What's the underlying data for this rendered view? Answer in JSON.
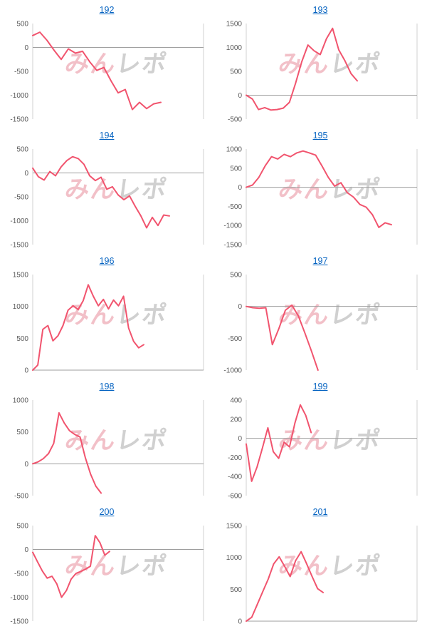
{
  "watermark": {
    "part1": "みん",
    "part2": "レポ"
  },
  "colors": {
    "line": "#f1546e",
    "title_link": "#0563c1",
    "tick": "#595959",
    "axis": "#d0d0d0",
    "zero": "#9e9e9e",
    "watermark_pink": "#f0b6bf",
    "watermark_gray": "#c8c8c8"
  },
  "chart_data": [
    {
      "type": "line",
      "title": "192",
      "ylim": [
        -1500,
        500
      ],
      "yticks": [
        500,
        0,
        -500,
        -1000,
        -1500
      ],
      "span": 0.75,
      "values": [
        250,
        320,
        150,
        -60,
        -250,
        -30,
        -120,
        -80,
        -300,
        -480,
        -420,
        -700,
        -950,
        -880,
        -1300,
        -1150,
        -1280,
        -1180,
        -1150
      ]
    },
    {
      "type": "line",
      "title": "193",
      "ylim": [
        -500,
        1500
      ],
      "yticks": [
        1500,
        1000,
        500,
        0,
        -500
      ],
      "span": 0.65,
      "values": [
        0,
        -80,
        -300,
        -260,
        -310,
        -300,
        -270,
        -150,
        250,
        700,
        1050,
        930,
        850,
        1180,
        1400,
        950,
        720,
        450,
        300
      ]
    },
    {
      "type": "line",
      "title": "194",
      "ylim": [
        -1500,
        500
      ],
      "yticks": [
        500,
        0,
        -500,
        -1000,
        -1500
      ],
      "span": 0.8,
      "values": [
        100,
        -80,
        -150,
        30,
        -60,
        130,
        260,
        340,
        300,
        180,
        -60,
        -160,
        -90,
        -340,
        -290,
        -460,
        -560,
        -480,
        -700,
        -900,
        -1150,
        -930,
        -1100,
        -880,
        -900
      ]
    },
    {
      "type": "line",
      "title": "195",
      "ylim": [
        -1500,
        1000
      ],
      "yticks": [
        1000,
        500,
        0,
        -500,
        -1000,
        -1500
      ],
      "span": 0.85,
      "values": [
        0,
        60,
        260,
        560,
        800,
        740,
        860,
        800,
        900,
        950,
        900,
        840,
        560,
        260,
        30,
        120,
        -140,
        -260,
        -450,
        -520,
        -720,
        -1050,
        -930,
        -980
      ]
    },
    {
      "type": "line",
      "title": "196",
      "ylim": [
        0,
        1500
      ],
      "yticks": [
        1500,
        1000,
        500,
        0
      ],
      "span": 0.65,
      "values": [
        0,
        80,
        640,
        700,
        460,
        540,
        700,
        940,
        1010,
        950,
        1090,
        1340,
        1160,
        1010,
        1110,
        960,
        1100,
        1010,
        1160,
        660,
        450,
        350,
        400
      ]
    },
    {
      "type": "line",
      "title": "197",
      "ylim": [
        -1000,
        500
      ],
      "yticks": [
        500,
        0,
        -500,
        -1000
      ],
      "span": 0.42,
      "values": [
        0,
        -20,
        -30,
        -20,
        -600,
        -350,
        -60,
        20,
        -150,
        -420,
        -700,
        -1000
      ]
    },
    {
      "type": "line",
      "title": "198",
      "ylim": [
        -500,
        1000
      ],
      "yticks": [
        1000,
        500,
        0,
        -500
      ],
      "span": 0.4,
      "values": [
        0,
        30,
        80,
        160,
        320,
        800,
        640,
        520,
        460,
        420,
        100,
        -160,
        -350,
        -460
      ]
    },
    {
      "type": "line",
      "title": "199",
      "ylim": [
        -600,
        400
      ],
      "yticks": [
        400,
        200,
        0,
        -200,
        -400,
        -600
      ],
      "span": 0.38,
      "values": [
        -60,
        -450,
        -300,
        -100,
        110,
        -140,
        -210,
        -40,
        -90,
        160,
        350,
        240,
        60
      ]
    },
    {
      "type": "line",
      "title": "200",
      "ylim": [
        -1500,
        500
      ],
      "yticks": [
        500,
        0,
        -500,
        -1000,
        -1500
      ],
      "span": 0.45,
      "values": [
        -60,
        -260,
        -450,
        -600,
        -560,
        -720,
        -1000,
        -860,
        -620,
        -500,
        -460,
        -410,
        -350,
        290,
        140,
        -120,
        -40
      ]
    },
    {
      "type": "line",
      "title": "201",
      "ylim": [
        0,
        1500
      ],
      "yticks": [
        1500,
        1000,
        500,
        0
      ],
      "span": 0.45,
      "values": [
        0,
        60,
        260,
        460,
        660,
        900,
        1010,
        860,
        700,
        950,
        1090,
        900,
        700,
        510,
        450
      ]
    }
  ]
}
